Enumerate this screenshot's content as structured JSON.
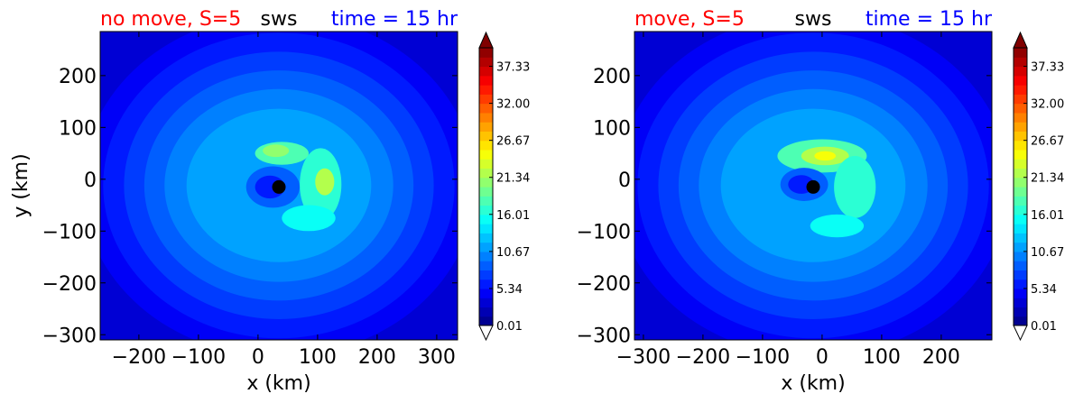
{
  "chart_data": [
    {
      "type": "contourf",
      "title_left": "no move, S=5",
      "title_center": "sws",
      "title_right": "time = 15 hr",
      "title_left_color": "#ff0000",
      "title_right_color": "#0000ff",
      "xlabel": "x (km)",
      "ylabel": "y (km)",
      "xlim": [
        -265,
        335
      ],
      "ylim": [
        -310,
        285
      ],
      "xticks": [
        -200,
        -100,
        0,
        100,
        200,
        300
      ],
      "xtick_labels": [
        "−200",
        "−100",
        "0",
        "100",
        "200",
        "300"
      ],
      "yticks": [
        -300,
        -200,
        -100,
        0,
        100,
        200
      ],
      "ytick_labels": [
        "−300",
        "−200",
        "−100",
        "0",
        "100",
        "200"
      ],
      "center_marker": {
        "x": 35,
        "y": -15
      },
      "field": {
        "outer_rings": [
          {
            "rx": 330,
            "ry": 330,
            "value": 4.8
          },
          {
            "rx": 295,
            "ry": 295,
            "value": 6.2
          },
          {
            "rx": 260,
            "ry": 258,
            "value": 7.5
          },
          {
            "rx": 226,
            "ry": 222,
            "value": 8.9
          },
          {
            "rx": 192,
            "ry": 186,
            "value": 10.2
          },
          {
            "rx": 155,
            "ry": 148,
            "value": 11.5
          }
        ],
        "ring_center": {
          "x": 35,
          "y": -12
        },
        "features": [
          {
            "label": "northern arc",
            "cx": 40,
            "cy": 50,
            "rx": 45,
            "ry": 22,
            "value": 17.5
          },
          {
            "label": "north max",
            "cx": 30,
            "cy": 55,
            "rx": 22,
            "ry": 12,
            "value": 20.5
          },
          {
            "label": "eastern arc",
            "cx": 105,
            "cy": -10,
            "rx": 35,
            "ry": 70,
            "value": 17.2
          },
          {
            "label": "east max",
            "cx": 112,
            "cy": -5,
            "rx": 16,
            "ry": 26,
            "value": 22.3
          },
          {
            "label": "southeast arm",
            "cx": 85,
            "cy": -75,
            "rx": 45,
            "ry": 25,
            "value": 16.0
          },
          {
            "label": "eye",
            "cx": 25,
            "cy": -15,
            "rx": 45,
            "ry": 40,
            "value": 9.0
          },
          {
            "label": "eye core",
            "cx": 20,
            "cy": -15,
            "rx": 25,
            "ry": 22,
            "value": 6.0
          }
        ]
      }
    },
    {
      "type": "contourf",
      "title_left": "move, S=5",
      "title_center": "sws",
      "title_right": "time = 15 hr",
      "title_left_color": "#ff0000",
      "title_right_color": "#0000ff",
      "xlabel": "x (km)",
      "ylabel": "",
      "xlim": [
        -315,
        285
      ],
      "ylim": [
        -310,
        285
      ],
      "xticks": [
        -300,
        -200,
        -100,
        0,
        100,
        200
      ],
      "xtick_labels": [
        "−300",
        "−200",
        "−100",
        "0",
        "100",
        "200"
      ],
      "yticks": [
        -300,
        -200,
        -100,
        0,
        100,
        200
      ],
      "ytick_labels": [
        "−300",
        "−200",
        "−100",
        "0",
        "100",
        "200"
      ],
      "center_marker": {
        "x": -15,
        "y": -15
      },
      "field": {
        "outer_rings": [
          {
            "rx": 330,
            "ry": 330,
            "value": 4.8
          },
          {
            "rx": 295,
            "ry": 295,
            "value": 6.2
          },
          {
            "rx": 260,
            "ry": 258,
            "value": 7.5
          },
          {
            "rx": 226,
            "ry": 222,
            "value": 8.9
          },
          {
            "rx": 192,
            "ry": 186,
            "value": 10.2
          },
          {
            "rx": 155,
            "ry": 148,
            "value": 11.5
          }
        ],
        "ring_center": {
          "x": -15,
          "y": -12
        },
        "features": [
          {
            "label": "northern arc",
            "cx": 0,
            "cy": 45,
            "rx": 75,
            "ry": 32,
            "value": 18.0
          },
          {
            "label": "north max",
            "cx": 5,
            "cy": 45,
            "rx": 40,
            "ry": 18,
            "value": 21.5
          },
          {
            "label": "north peak",
            "cx": 5,
            "cy": 45,
            "rx": 18,
            "ry": 9,
            "value": 24.5
          },
          {
            "label": "eastern arc",
            "cx": 55,
            "cy": -15,
            "rx": 35,
            "ry": 60,
            "value": 16.5
          },
          {
            "label": "southern arm",
            "cx": 25,
            "cy": -90,
            "rx": 45,
            "ry": 22,
            "value": 15.0
          },
          {
            "label": "eye",
            "cx": -30,
            "cy": -10,
            "rx": 40,
            "ry": 32,
            "value": 8.8
          },
          {
            "label": "eye core",
            "cx": -35,
            "cy": -10,
            "rx": 22,
            "ry": 18,
            "value": 5.8
          }
        ]
      }
    }
  ],
  "colorbar": {
    "min": 0.01,
    "max": 40.0,
    "n_levels": 30,
    "extend": "both",
    "tick_values": [
      0.01,
      5.34,
      10.67,
      16.01,
      21.34,
      26.67,
      32.0,
      37.33
    ],
    "tick_labels": [
      "0.01",
      "5.34",
      "10.67",
      "16.01",
      "21.34",
      "26.67",
      "32.00",
      "37.33"
    ],
    "cmap": "jet"
  }
}
